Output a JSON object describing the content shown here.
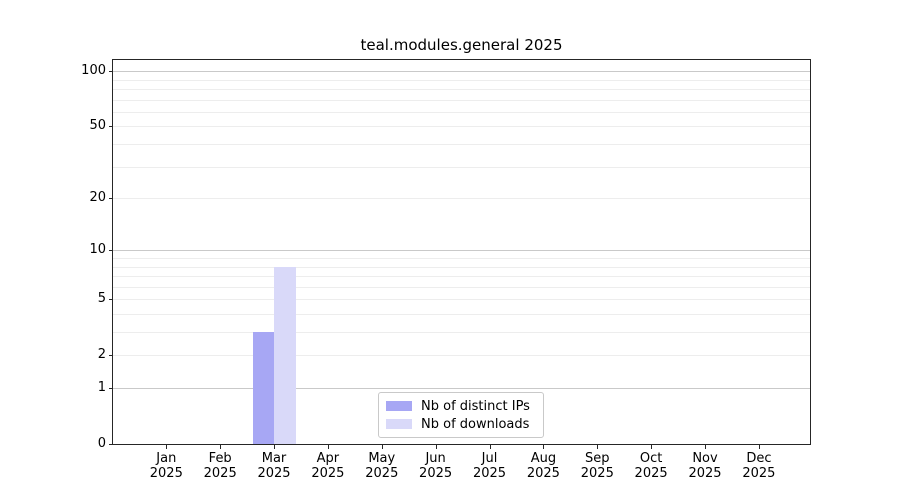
{
  "chart_data": {
    "type": "bar",
    "title": "teal.modules.general 2025",
    "x": {
      "categories": [
        "Jan",
        "Feb",
        "Mar",
        "Apr",
        "May",
        "Jun",
        "Jul",
        "Aug",
        "Sep",
        "Oct",
        "Nov",
        "Dec"
      ],
      "year": "2025"
    },
    "series": [
      {
        "name": "Nb of distinct IPs",
        "color": "#a7a7f4",
        "values": [
          0,
          0,
          3,
          0,
          0,
          0,
          0,
          0,
          0,
          0,
          0,
          0
        ]
      },
      {
        "name": "Nb of downloads",
        "color": "#d9d9f9",
        "values": [
          0,
          0,
          8,
          0,
          0,
          0,
          0,
          0,
          0,
          0,
          0,
          0
        ]
      }
    ],
    "y_axis": {
      "scale": "log10(1+v)",
      "ticks": [
        0,
        1,
        2,
        5,
        10,
        20,
        50,
        100
      ],
      "major_gridlines": [
        1,
        10,
        100
      ],
      "minor_gridlines": [
        2,
        3,
        4,
        5,
        6,
        7,
        8,
        9,
        20,
        30,
        40,
        50,
        60,
        70,
        80,
        90
      ],
      "ylim": [
        0,
        115
      ],
      "grid": true
    },
    "legend": {
      "position": "lower center"
    }
  }
}
